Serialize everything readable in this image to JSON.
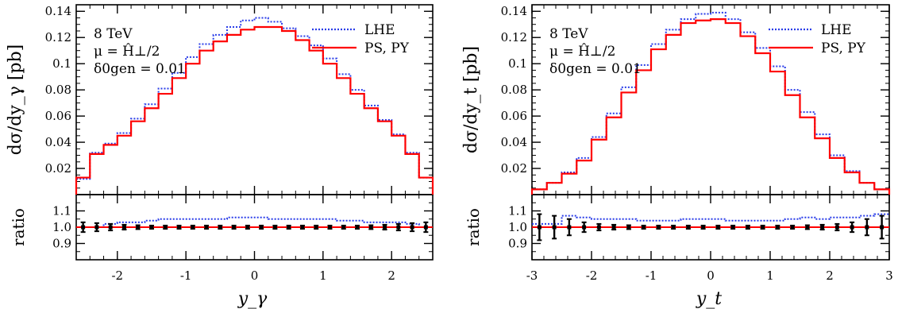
{
  "chart_data": [
    {
      "type": "line",
      "panel": "left",
      "xlabel": "y_γ",
      "ylabel": "dσ/dy_γ [pb]",
      "ratio_label": "ratio",
      "annotations": [
        "8 TeV",
        "μ = Ĥ⊥/2",
        "δ0gen = 0.01"
      ],
      "legend": [
        "LHE",
        "PS, PY"
      ],
      "legend_position": "top-right",
      "xlim": [
        -2.6,
        2.6
      ],
      "ylim": [
        0,
        0.145
      ],
      "ratio_ylim": [
        0.8,
        1.2
      ],
      "x_ticks": [
        "-2",
        "-1",
        "0",
        "1",
        "2"
      ],
      "y_ticks": [
        "0.02",
        "0.04",
        "0.06",
        "0.08",
        "0.1",
        "0.12",
        "0.14"
      ],
      "ratio_y_ticks": [
        "0.9",
        "1.0",
        "1.1"
      ],
      "bin_edges": [
        -2.6,
        -2.4,
        -2.2,
        -2.0,
        -1.8,
        -1.6,
        -1.4,
        -1.2,
        -1.0,
        -0.8,
        -0.6,
        -0.4,
        -0.2,
        0.0,
        0.2,
        0.4,
        0.6,
        0.8,
        1.0,
        1.2,
        1.4,
        1.6,
        1.8,
        2.0,
        2.2,
        2.4,
        2.6
      ],
      "series": [
        {
          "name": "LHE",
          "color": "#2a3de8",
          "style": "dotted",
          "values": [
            0.012,
            0.032,
            0.039,
            0.047,
            0.058,
            0.069,
            0.081,
            0.093,
            0.105,
            0.115,
            0.122,
            0.128,
            0.133,
            0.135,
            0.132,
            0.127,
            0.121,
            0.114,
            0.104,
            0.092,
            0.08,
            0.068,
            0.057,
            0.046,
            0.032,
            0.013
          ]
        },
        {
          "name": "PS, PY",
          "color": "#ff0000",
          "style": "solid",
          "values": [
            0.013,
            0.031,
            0.038,
            0.045,
            0.056,
            0.066,
            0.077,
            0.089,
            0.1,
            0.11,
            0.117,
            0.122,
            0.126,
            0.128,
            0.128,
            0.125,
            0.118,
            0.11,
            0.1,
            0.089,
            0.077,
            0.066,
            0.056,
            0.045,
            0.031,
            0.013
          ]
        }
      ],
      "ratio_lhe": [
        1.0,
        1.0,
        1.02,
        1.03,
        1.03,
        1.04,
        1.05,
        1.05,
        1.05,
        1.05,
        1.05,
        1.06,
        1.06,
        1.06,
        1.05,
        1.05,
        1.05,
        1.05,
        1.05,
        1.04,
        1.04,
        1.03,
        1.03,
        1.03,
        1.02,
        1.0
      ],
      "ratio_err": [
        0.03,
        0.025,
        0.02,
        0.015,
        0.012,
        0.01,
        0.01,
        0.01,
        0.01,
        0.01,
        0.01,
        0.01,
        0.01,
        0.01,
        0.01,
        0.01,
        0.01,
        0.01,
        0.01,
        0.01,
        0.01,
        0.012,
        0.015,
        0.02,
        0.025,
        0.03
      ]
    },
    {
      "type": "line",
      "panel": "right",
      "xlabel": "y_t",
      "ylabel": "dσ/dy_t [pb]",
      "ratio_label": "ratio",
      "annotations": [
        "8 TeV",
        "μ = Ĥ⊥/2",
        "δ0gen = 0.01"
      ],
      "legend": [
        "LHE",
        "PS, PY"
      ],
      "legend_position": "top-right",
      "xlim": [
        -3,
        3
      ],
      "ylim": [
        0,
        0.145
      ],
      "ratio_ylim": [
        0.8,
        1.2
      ],
      "x_ticks": [
        "-3",
        "-2",
        "-1",
        "0",
        "1",
        "2",
        "3"
      ],
      "y_ticks": [
        "0.02",
        "0.04",
        "0.06",
        "0.08",
        "0.1",
        "0.12",
        "0.14"
      ],
      "ratio_y_ticks": [
        "0.9",
        "1.0",
        "1.1"
      ],
      "bin_edges": [
        -3.0,
        -2.75,
        -2.5,
        -2.25,
        -2.0,
        -1.75,
        -1.5,
        -1.25,
        -1.0,
        -0.75,
        -0.5,
        -0.25,
        0.0,
        0.25,
        0.5,
        0.75,
        1.0,
        1.25,
        1.5,
        1.75,
        2.0,
        2.25,
        2.5,
        2.75,
        3.0
      ],
      "series": [
        {
          "name": "LHE",
          "color": "#2a3de8",
          "style": "dotted",
          "values": [
            0.004,
            0.009,
            0.017,
            0.028,
            0.044,
            0.062,
            0.082,
            0.099,
            0.115,
            0.126,
            0.134,
            0.138,
            0.139,
            0.134,
            0.124,
            0.112,
            0.098,
            0.08,
            0.063,
            0.046,
            0.03,
            0.018,
            0.009,
            0.004
          ]
        },
        {
          "name": "PS, PY",
          "color": "#ff0000",
          "style": "solid",
          "values": [
            0.004,
            0.009,
            0.016,
            0.026,
            0.042,
            0.059,
            0.078,
            0.095,
            0.111,
            0.122,
            0.131,
            0.133,
            0.134,
            0.131,
            0.121,
            0.108,
            0.094,
            0.076,
            0.059,
            0.043,
            0.028,
            0.017,
            0.009,
            0.004
          ]
        }
      ],
      "ratio_lhe": [
        1.02,
        1.02,
        1.07,
        1.06,
        1.05,
        1.05,
        1.05,
        1.04,
        1.04,
        1.04,
        1.05,
        1.05,
        1.05,
        1.04,
        1.04,
        1.04,
        1.04,
        1.05,
        1.06,
        1.05,
        1.06,
        1.06,
        1.07,
        1.08
      ],
      "ratio_err": [
        0.08,
        0.07,
        0.05,
        0.03,
        0.02,
        0.015,
        0.012,
        0.01,
        0.01,
        0.01,
        0.01,
        0.01,
        0.01,
        0.01,
        0.01,
        0.01,
        0.01,
        0.01,
        0.012,
        0.015,
        0.02,
        0.03,
        0.05,
        0.07
      ]
    }
  ]
}
